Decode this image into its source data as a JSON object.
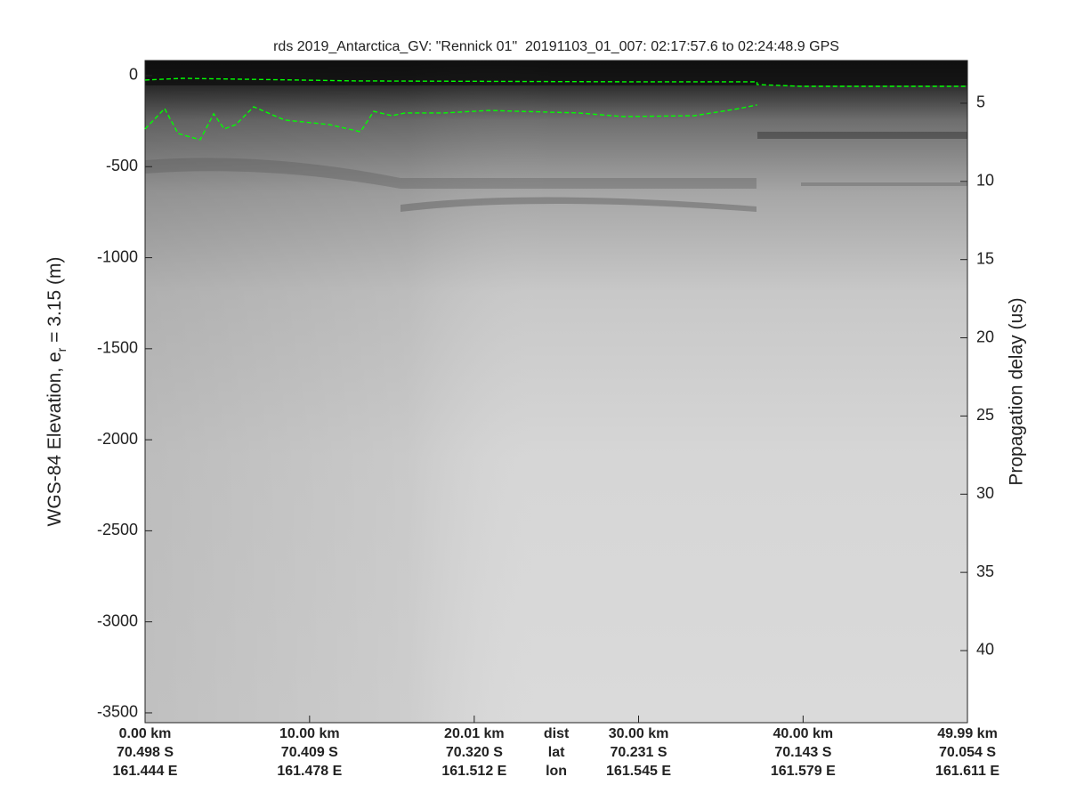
{
  "chart_data": {
    "type": "echogram",
    "title": "rds 2019_Antarctica_GV: \"Rennick 01\"  20191103_01_007: 02:17:57.6 to 02:24:48.9 GPS",
    "ylabel_parts": [
      "WGS-84 Elevation, e",
      "r",
      " = 3.15 (m)"
    ],
    "y2label": "Propagation delay (us)",
    "xlim": [
      0,
      49.99
    ],
    "ylim": [
      -3554,
      83
    ],
    "y2lim": [
      2.27,
      44.61
    ],
    "yticks": [
      0,
      -500,
      -1000,
      -1500,
      -2000,
      -2500,
      -3000,
      -3500
    ],
    "y2ticks": [
      5,
      10,
      15,
      20,
      25,
      30,
      35,
      40
    ],
    "xticks": [
      {
        "value": 0,
        "label": "0.00 km"
      },
      {
        "value": 10,
        "label": "10.00 km"
      },
      {
        "value": 20.01,
        "label": "20.01 km"
      },
      {
        "value": 30,
        "label": "30.00 km"
      },
      {
        "value": 40,
        "label": "40.00 km"
      },
      {
        "value": 49.99,
        "label": "49.99 km"
      }
    ],
    "xtick_lat": [
      "70.498 S",
      "70.409 S",
      "70.320 S",
      "70.231 S",
      "70.143 S",
      "70.054 S"
    ],
    "xtick_lon": [
      "161.444 E",
      "161.478 E",
      "161.512 E",
      "161.545 E",
      "161.579 E",
      "161.611 E"
    ],
    "row_labels": [
      "dist",
      "lat",
      "lon"
    ],
    "row_labels_x": 25.0,
    "lines": [
      {
        "color": "#00ff00",
        "dashed": true,
        "x": [
          0,
          2.3,
          12.8,
          29.1,
          37.2,
          37.2,
          39.9,
          49.99
        ],
        "values": [
          -24,
          -15,
          -29,
          -34,
          -34,
          -49,
          -59,
          -59
        ]
      },
      {
        "color": "#00ff00",
        "dashed": true,
        "x": [
          0,
          1.19,
          2.0,
          3.35,
          4.17,
          4.81,
          5.52,
          6.06,
          6.6,
          8.49,
          11.2,
          13.1,
          13.9,
          15.0,
          15.8,
          18.2,
          20.9,
          26.3,
          29.1,
          33.4,
          36.1,
          37.2
        ],
        "values": [
          -293,
          -181,
          -318,
          -352,
          -210,
          -293,
          -269,
          -220,
          -171,
          -244,
          -269,
          -308,
          -196,
          -220,
          -205,
          -205,
          -191,
          -205,
          -225,
          -220,
          -181,
          -161
        ]
      }
    ]
  }
}
